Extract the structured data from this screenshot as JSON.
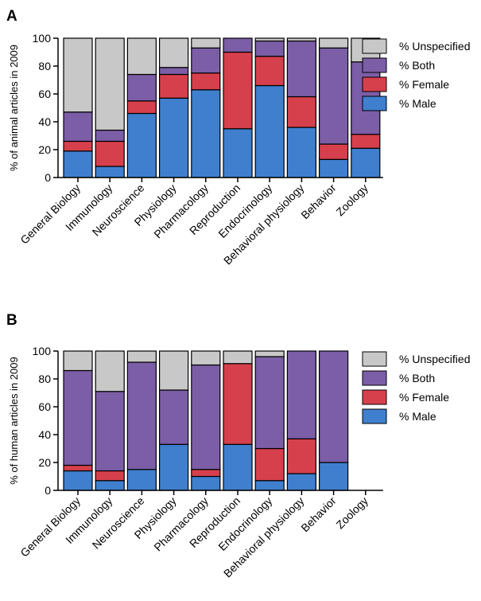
{
  "colors": {
    "Unspecified": "#c8c8c8",
    "Both": "#7b5ea6",
    "Female": "#d6404c",
    "Male": "#3f7fce"
  },
  "chart_data": [
    {
      "type": "bar",
      "stacked": true,
      "panel_label": "A",
      "ylabel": "% of animal articles in 2009",
      "ylim": [
        0,
        100
      ],
      "yticks": [
        0,
        20,
        40,
        60,
        80,
        100
      ],
      "legend_placement": "right",
      "categories": [
        "General Biology",
        "Immunology",
        "Neuroscience",
        "Physiology",
        "Pharmacology",
        "Reproduction",
        "Endocrinology",
        "Behavioral physiology",
        "Behavior",
        "Zoology"
      ],
      "series": [
        {
          "name": "% Male",
          "key": "Male",
          "values": [
            19,
            8,
            46,
            57,
            63,
            35,
            66,
            36,
            13,
            21
          ]
        },
        {
          "name": "% Female",
          "key": "Female",
          "values": [
            7,
            18,
            9,
            17,
            12,
            55,
            21,
            22,
            11,
            10
          ]
        },
        {
          "name": "% Both",
          "key": "Both",
          "values": [
            21,
            8,
            19,
            5,
            18,
            10,
            11,
            40,
            69,
            52
          ]
        },
        {
          "name": "% Unspecified",
          "key": "Unspecified",
          "values": [
            53,
            66,
            26,
            21,
            7,
            0,
            2,
            2,
            7,
            17
          ]
        }
      ],
      "legend": [
        "% Unspecified",
        "% Both",
        "% Female",
        "% Male"
      ]
    },
    {
      "type": "bar",
      "stacked": true,
      "panel_label": "B",
      "ylabel": "% of human articles in 2009",
      "ylim": [
        0,
        100
      ],
      "yticks": [
        0,
        20,
        40,
        60,
        80,
        100
      ],
      "legend_placement": "right",
      "categories": [
        "General Biology",
        "Immunology",
        "Neuroscience",
        "Physiology",
        "Pharmacology",
        "Reproduction",
        "Endocrinology",
        "Behavioral physiology",
        "Behavior",
        "Zoology"
      ],
      "series": [
        {
          "name": "% Male",
          "key": "Male",
          "values": [
            14,
            7,
            15,
            33,
            10,
            33,
            7,
            12,
            20,
            0
          ]
        },
        {
          "name": "% Female",
          "key": "Female",
          "values": [
            4,
            7,
            0,
            0,
            5,
            58,
            23,
            25,
            0,
            0
          ]
        },
        {
          "name": "% Both",
          "key": "Both",
          "values": [
            68,
            57,
            77,
            39,
            75,
            0,
            66,
            63,
            80,
            0
          ]
        },
        {
          "name": "% Unspecified",
          "key": "Unspecified",
          "values": [
            14,
            29,
            8,
            28,
            10,
            9,
            4,
            0,
            0,
            0
          ]
        }
      ],
      "legend": [
        "% Unspecified",
        "% Both",
        "% Female",
        "% Male"
      ]
    }
  ]
}
